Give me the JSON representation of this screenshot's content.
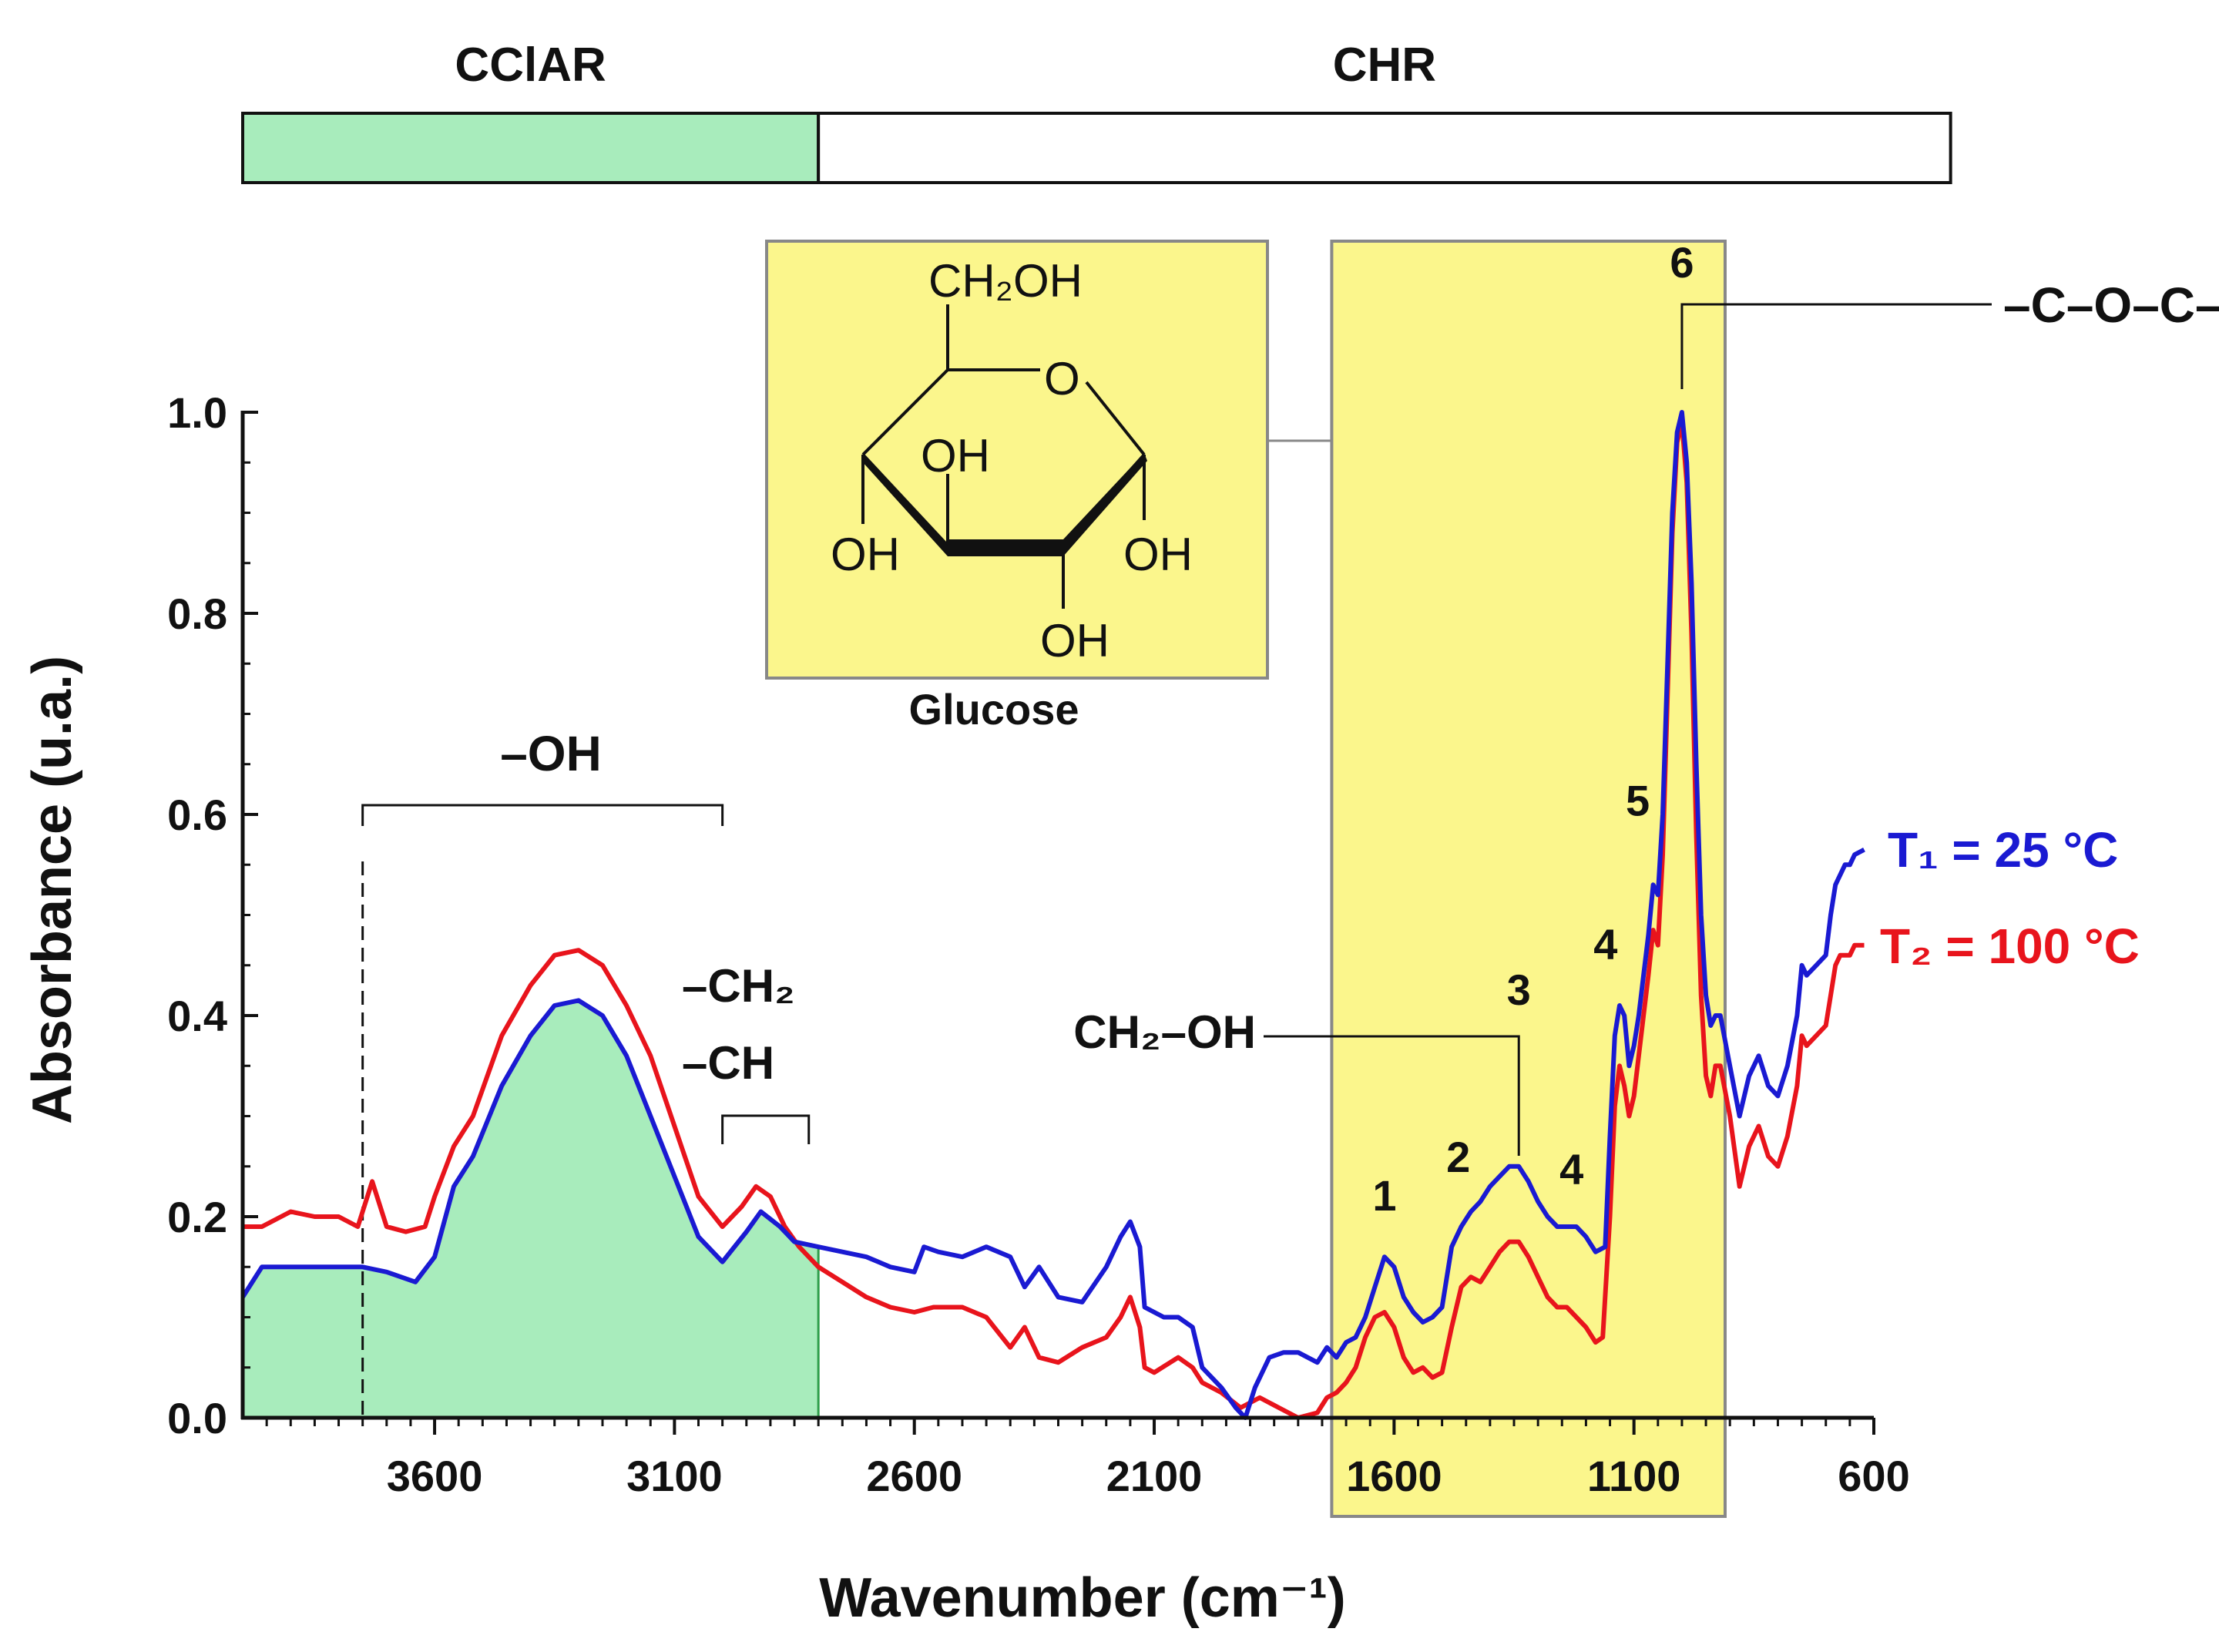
{
  "chart_data": {
    "type": "line",
    "xlabel": "Wavenumber (cm⁻¹)",
    "ylabel": "Absorbance (u.a.)",
    "xlim": [
      4000,
      600
    ],
    "ylim": [
      0,
      1.0
    ],
    "xticks": [
      3600,
      3100,
      2600,
      2100,
      1600,
      1100,
      600
    ],
    "xtick_labels": [
      "3600",
      "3100",
      "2600",
      "2100",
      "1600",
      "1100",
      "600"
    ],
    "yticks": [
      0,
      0.2,
      0.4,
      0.6,
      0.8,
      1.0
    ],
    "ytick_labels": [
      "0.0",
      "0.2",
      "0.4",
      "0.6",
      "0.8",
      "1.0"
    ],
    "series": [
      {
        "name": "T₁ = 25 °C",
        "color": "#1a1ad2",
        "points": [
          [
            4000,
            0.12
          ],
          [
            3960,
            0.15
          ],
          [
            3900,
            0.15
          ],
          [
            3800,
            0.15
          ],
          [
            3750,
            0.15
          ],
          [
            3700,
            0.145
          ],
          [
            3640,
            0.135
          ],
          [
            3600,
            0.16
          ],
          [
            3560,
            0.23
          ],
          [
            3520,
            0.26
          ],
          [
            3460,
            0.33
          ],
          [
            3400,
            0.38
          ],
          [
            3350,
            0.41
          ],
          [
            3300,
            0.415
          ],
          [
            3250,
            0.4
          ],
          [
            3200,
            0.36
          ],
          [
            3150,
            0.3
          ],
          [
            3100,
            0.24
          ],
          [
            3050,
            0.18
          ],
          [
            3000,
            0.155
          ],
          [
            2950,
            0.185
          ],
          [
            2920,
            0.205
          ],
          [
            2880,
            0.19
          ],
          [
            2850,
            0.175
          ],
          [
            2800,
            0.17
          ],
          [
            2750,
            0.165
          ],
          [
            2700,
            0.16
          ],
          [
            2650,
            0.15
          ],
          [
            2600,
            0.145
          ],
          [
            2580,
            0.17
          ],
          [
            2550,
            0.165
          ],
          [
            2500,
            0.16
          ],
          [
            2450,
            0.17
          ],
          [
            2400,
            0.16
          ],
          [
            2370,
            0.13
          ],
          [
            2340,
            0.15
          ],
          [
            2300,
            0.12
          ],
          [
            2250,
            0.115
          ],
          [
            2200,
            0.15
          ],
          [
            2170,
            0.18
          ],
          [
            2150,
            0.195
          ],
          [
            2130,
            0.17
          ],
          [
            2120,
            0.11
          ],
          [
            2080,
            0.1
          ],
          [
            2050,
            0.1
          ],
          [
            2020,
            0.09
          ],
          [
            2000,
            0.05
          ],
          [
            1960,
            0.03
          ],
          [
            1930,
            0.01
          ],
          [
            1910,
            0.0
          ],
          [
            1890,
            0.03
          ],
          [
            1860,
            0.06
          ],
          [
            1830,
            0.065
          ],
          [
            1800,
            0.065
          ],
          [
            1760,
            0.055
          ],
          [
            1740,
            0.07
          ],
          [
            1720,
            0.06
          ],
          [
            1700,
            0.075
          ],
          [
            1680,
            0.08
          ],
          [
            1660,
            0.1
          ],
          [
            1640,
            0.13
          ],
          [
            1620,
            0.16
          ],
          [
            1600,
            0.15
          ],
          [
            1580,
            0.12
          ],
          [
            1560,
            0.105
          ],
          [
            1540,
            0.095
          ],
          [
            1520,
            0.1
          ],
          [
            1500,
            0.11
          ],
          [
            1480,
            0.17
          ],
          [
            1460,
            0.19
          ],
          [
            1440,
            0.205
          ],
          [
            1420,
            0.215
          ],
          [
            1400,
            0.23
          ],
          [
            1380,
            0.24
          ],
          [
            1360,
            0.25
          ],
          [
            1340,
            0.25
          ],
          [
            1320,
            0.235
          ],
          [
            1300,
            0.215
          ],
          [
            1280,
            0.2
          ],
          [
            1260,
            0.19
          ],
          [
            1240,
            0.19
          ],
          [
            1220,
            0.19
          ],
          [
            1200,
            0.18
          ],
          [
            1180,
            0.165
          ],
          [
            1160,
            0.17
          ],
          [
            1150,
            0.28
          ],
          [
            1140,
            0.38
          ],
          [
            1130,
            0.41
          ],
          [
            1120,
            0.4
          ],
          [
            1110,
            0.35
          ],
          [
            1100,
            0.37
          ],
          [
            1090,
            0.4
          ],
          [
            1080,
            0.44
          ],
          [
            1070,
            0.48
          ],
          [
            1060,
            0.53
          ],
          [
            1050,
            0.52
          ],
          [
            1040,
            0.6
          ],
          [
            1030,
            0.75
          ],
          [
            1020,
            0.9
          ],
          [
            1010,
            0.98
          ],
          [
            1000,
            1.0
          ],
          [
            990,
            0.95
          ],
          [
            980,
            0.83
          ],
          [
            970,
            0.65
          ],
          [
            960,
            0.5
          ],
          [
            950,
            0.42
          ],
          [
            940,
            0.39
          ],
          [
            930,
            0.4
          ],
          [
            920,
            0.4
          ],
          [
            900,
            0.35
          ],
          [
            880,
            0.3
          ],
          [
            860,
            0.34
          ],
          [
            840,
            0.36
          ],
          [
            820,
            0.33
          ],
          [
            800,
            0.32
          ],
          [
            780,
            0.35
          ],
          [
            760,
            0.4
          ],
          [
            750,
            0.45
          ],
          [
            740,
            0.44
          ],
          [
            720,
            0.45
          ],
          [
            700,
            0.46
          ],
          [
            690,
            0.5
          ],
          [
            680,
            0.53
          ],
          [
            670,
            0.54
          ],
          [
            660,
            0.55
          ],
          [
            650,
            0.55
          ],
          [
            640,
            0.56
          ],
          [
            620,
            0.565
          ]
        ]
      },
      {
        "name": "T₂ = 100 °C",
        "color": "#e8141c",
        "points": [
          [
            4000,
            0.19
          ],
          [
            3960,
            0.19
          ],
          [
            3900,
            0.205
          ],
          [
            3850,
            0.2
          ],
          [
            3800,
            0.2
          ],
          [
            3760,
            0.19
          ],
          [
            3730,
            0.235
          ],
          [
            3700,
            0.19
          ],
          [
            3660,
            0.185
          ],
          [
            3620,
            0.19
          ],
          [
            3600,
            0.22
          ],
          [
            3560,
            0.27
          ],
          [
            3520,
            0.3
          ],
          [
            3460,
            0.38
          ],
          [
            3400,
            0.43
          ],
          [
            3350,
            0.46
          ],
          [
            3300,
            0.465
          ],
          [
            3250,
            0.45
          ],
          [
            3200,
            0.41
          ],
          [
            3150,
            0.36
          ],
          [
            3100,
            0.29
          ],
          [
            3050,
            0.22
          ],
          [
            3000,
            0.19
          ],
          [
            2960,
            0.21
          ],
          [
            2930,
            0.23
          ],
          [
            2900,
            0.22
          ],
          [
            2870,
            0.19
          ],
          [
            2840,
            0.17
          ],
          [
            2800,
            0.15
          ],
          [
            2750,
            0.135
          ],
          [
            2700,
            0.12
          ],
          [
            2650,
            0.11
          ],
          [
            2600,
            0.105
          ],
          [
            2560,
            0.11
          ],
          [
            2500,
            0.11
          ],
          [
            2450,
            0.1
          ],
          [
            2400,
            0.07
          ],
          [
            2370,
            0.09
          ],
          [
            2340,
            0.06
          ],
          [
            2300,
            0.055
          ],
          [
            2250,
            0.07
          ],
          [
            2200,
            0.08
          ],
          [
            2170,
            0.1
          ],
          [
            2150,
            0.12
          ],
          [
            2130,
            0.09
          ],
          [
            2120,
            0.05
          ],
          [
            2100,
            0.045
          ],
          [
            2050,
            0.06
          ],
          [
            2020,
            0.05
          ],
          [
            2000,
            0.035
          ],
          [
            1960,
            0.025
          ],
          [
            1920,
            0.01
          ],
          [
            1880,
            0.02
          ],
          [
            1840,
            0.01
          ],
          [
            1800,
            0.0
          ],
          [
            1760,
            0.005
          ],
          [
            1740,
            0.02
          ],
          [
            1720,
            0.025
          ],
          [
            1700,
            0.035
          ],
          [
            1680,
            0.05
          ],
          [
            1660,
            0.08
          ],
          [
            1640,
            0.1
          ],
          [
            1620,
            0.105
          ],
          [
            1600,
            0.09
          ],
          [
            1580,
            0.06
          ],
          [
            1560,
            0.045
          ],
          [
            1540,
            0.05
          ],
          [
            1520,
            0.04
          ],
          [
            1500,
            0.045
          ],
          [
            1480,
            0.09
          ],
          [
            1460,
            0.13
          ],
          [
            1440,
            0.14
          ],
          [
            1420,
            0.135
          ],
          [
            1400,
            0.15
          ],
          [
            1380,
            0.165
          ],
          [
            1360,
            0.175
          ],
          [
            1340,
            0.175
          ],
          [
            1320,
            0.16
          ],
          [
            1300,
            0.14
          ],
          [
            1280,
            0.12
          ],
          [
            1260,
            0.11
          ],
          [
            1240,
            0.11
          ],
          [
            1220,
            0.1
          ],
          [
            1200,
            0.09
          ],
          [
            1180,
            0.075
          ],
          [
            1165,
            0.08
          ],
          [
            1150,
            0.2
          ],
          [
            1140,
            0.31
          ],
          [
            1130,
            0.35
          ],
          [
            1120,
            0.33
          ],
          [
            1110,
            0.3
          ],
          [
            1100,
            0.32
          ],
          [
            1090,
            0.36
          ],
          [
            1080,
            0.4
          ],
          [
            1070,
            0.44
          ],
          [
            1060,
            0.485
          ],
          [
            1050,
            0.47
          ],
          [
            1040,
            0.56
          ],
          [
            1030,
            0.72
          ],
          [
            1020,
            0.88
          ],
          [
            1010,
            0.97
          ],
          [
            1000,
            0.99
          ],
          [
            990,
            0.93
          ],
          [
            980,
            0.78
          ],
          [
            970,
            0.58
          ],
          [
            960,
            0.42
          ],
          [
            950,
            0.34
          ],
          [
            940,
            0.32
          ],
          [
            930,
            0.35
          ],
          [
            920,
            0.35
          ],
          [
            900,
            0.3
          ],
          [
            880,
            0.23
          ],
          [
            860,
            0.27
          ],
          [
            840,
            0.29
          ],
          [
            820,
            0.26
          ],
          [
            800,
            0.25
          ],
          [
            780,
            0.28
          ],
          [
            760,
            0.33
          ],
          [
            750,
            0.38
          ],
          [
            740,
            0.37
          ],
          [
            720,
            0.38
          ],
          [
            700,
            0.39
          ],
          [
            690,
            0.42
          ],
          [
            680,
            0.45
          ],
          [
            670,
            0.46
          ],
          [
            660,
            0.46
          ],
          [
            650,
            0.46
          ],
          [
            640,
            0.47
          ],
          [
            620,
            0.47
          ]
        ]
      }
    ],
    "fill_region": {
      "series_index": 0,
      "x_from": 4000,
      "x_to": 2800,
      "color": "#a8ecbc"
    },
    "highlight_region": {
      "x_from": 1730,
      "x_to": 910,
      "color": "#fbf68c"
    },
    "dashed_line_x": 3750,
    "top_bar": {
      "segments": [
        {
          "label": "CClAR",
          "x_from": 4000,
          "x_to": 2800,
          "color": "#a8ecbc"
        },
        {
          "label": "CHR",
          "x_from": 2800,
          "x_to": 440,
          "color": "#ffffff"
        }
      ]
    },
    "annotations": {
      "oh_label": "–OH",
      "oh_bracket": [
        3750,
        3000
      ],
      "ch2_label": "–CH₂",
      "ch_label": "–CH",
      "ch_bracket": [
        3000,
        2820
      ],
      "ch2oh_label": "CH₂–OH",
      "coc_label": "–C–O–C–",
      "peaks": [
        {
          "label": "1",
          "x": 1620,
          "y": 0.16
        },
        {
          "label": "2",
          "x": 1450,
          "y": 0.21
        },
        {
          "label": "3",
          "x": 1340,
          "y": 0.25
        },
        {
          "label": "4",
          "x": 1230,
          "y": 0.19
        },
        {
          "label": "4",
          "x": 1135,
          "y": 0.41
        },
        {
          "label": "5",
          "x": 1060,
          "y": 0.53
        },
        {
          "label": "6",
          "x": 1000,
          "y": 1.0
        }
      ]
    },
    "inset": {
      "caption": "Glucose",
      "labels": {
        "ch2oh": "CH₂OH",
        "o": "O",
        "oh_top": "OH",
        "oh_left": "OH",
        "oh_right": "OH",
        "oh_bottom": "OH"
      }
    }
  }
}
